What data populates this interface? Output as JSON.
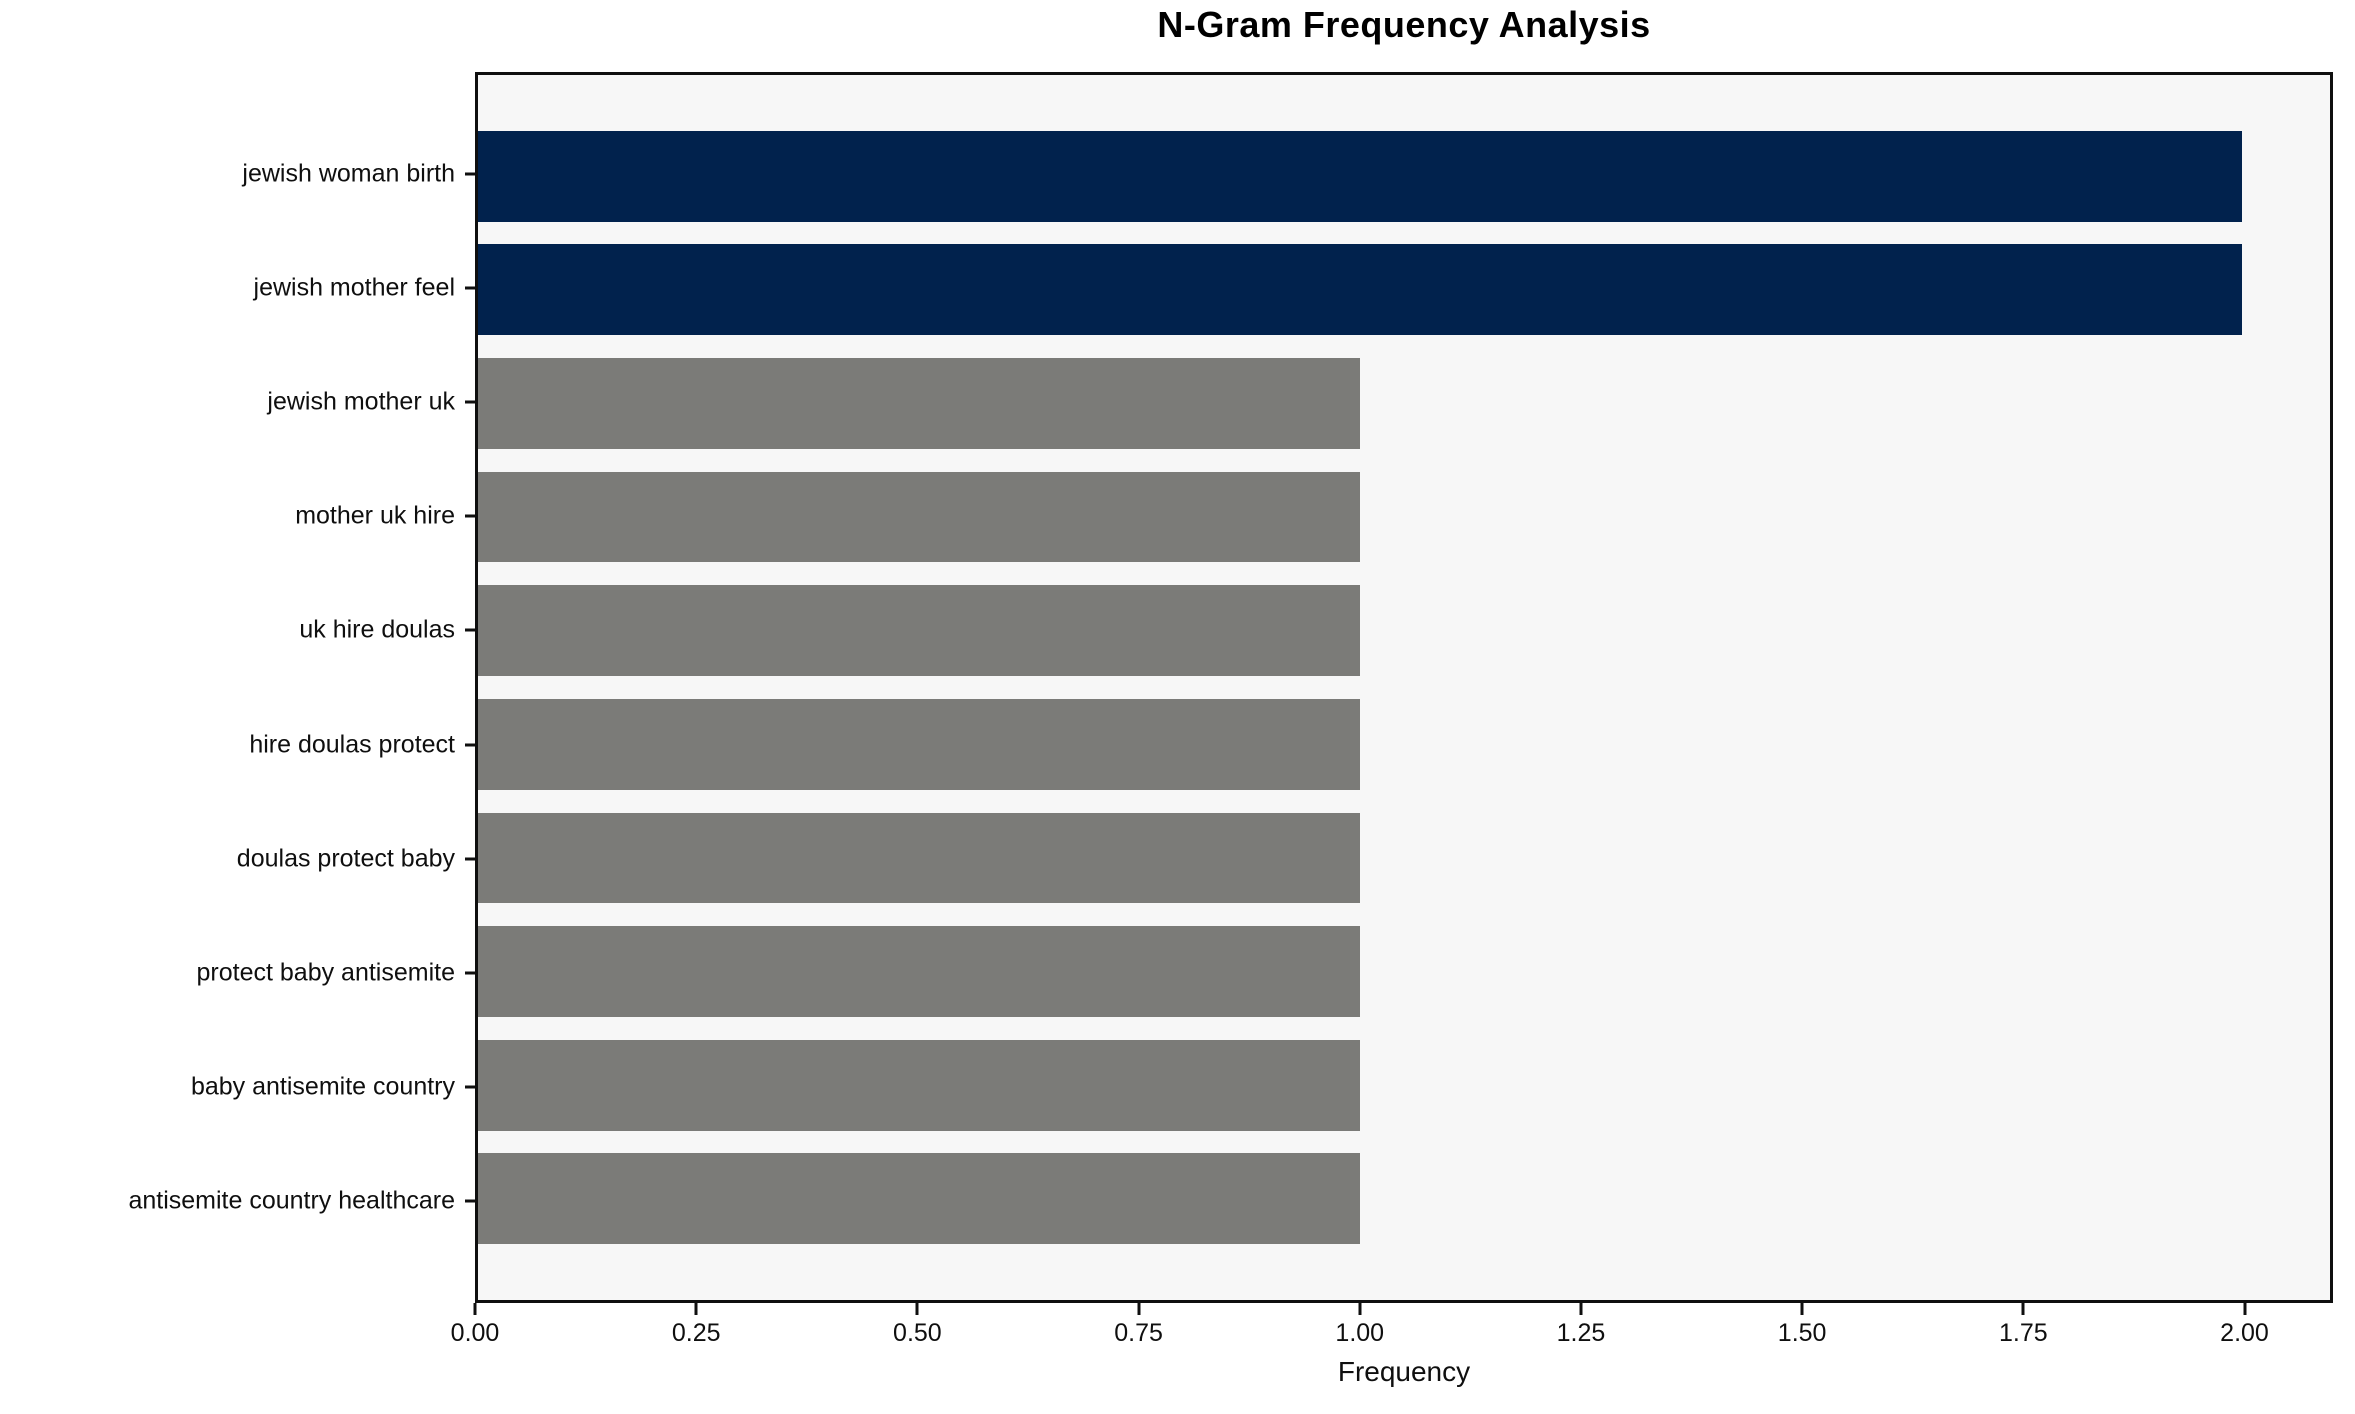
{
  "chart_data": {
    "type": "bar",
    "orientation": "horizontal",
    "title": "N-Gram Frequency Analysis",
    "xlabel": "Frequency",
    "ylabel": "",
    "categories": [
      "jewish woman birth",
      "jewish mother feel",
      "jewish mother uk",
      "mother uk hire",
      "uk hire doulas",
      "hire doulas protect",
      "doulas protect baby",
      "protect baby antisemite",
      "baby antisemite country",
      "antisemite country healthcare"
    ],
    "values": [
      2,
      2,
      1,
      1,
      1,
      1,
      1,
      1,
      1,
      1
    ],
    "bar_colors": [
      "#01224d",
      "#01224d",
      "#7b7b78",
      "#7b7b78",
      "#7b7b78",
      "#7b7b78",
      "#7b7b78",
      "#7b7b78",
      "#7b7b78",
      "#7b7b78"
    ],
    "highlight_color": "#01224d",
    "default_color": "#7b7b78",
    "plot_background": "#f7f7f7",
    "figure_background": "#ffffff",
    "xlim": [
      0,
      2.1
    ],
    "xticks": [
      "0.00",
      "0.25",
      "0.50",
      "0.75",
      "1.00",
      "1.25",
      "1.50",
      "1.75",
      "2.00"
    ],
    "xtick_values": [
      0,
      0.25,
      0.5,
      0.75,
      1.0,
      1.25,
      1.5,
      1.75,
      2.0
    ],
    "bar_band_fraction": 0.8,
    "grid": false,
    "legend": "none"
  }
}
